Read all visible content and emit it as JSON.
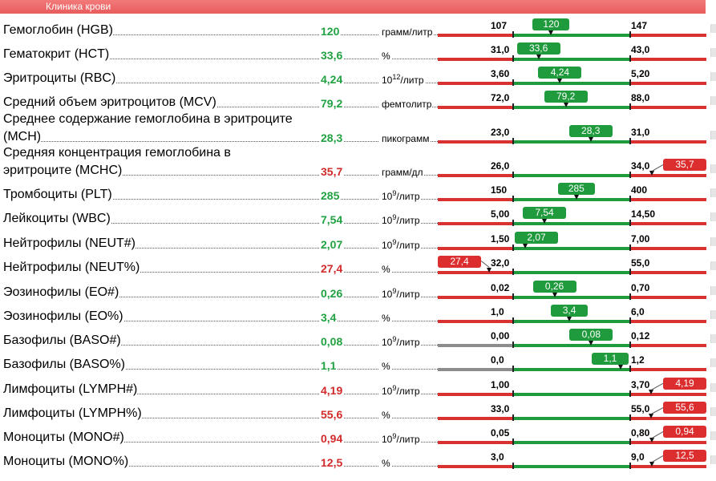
{
  "header": {
    "title": "Клиника крови"
  },
  "rows": [
    {
      "name": "Гемоглобин (HGB)",
      "value": "120",
      "unit": "грамм/литр",
      "low": "107",
      "high": "147",
      "v": 120,
      "lo": 107,
      "hi": 147,
      "status": "ok"
    },
    {
      "name": "Гематокрит (HCT)",
      "value": "33,6",
      "unit": "%",
      "low": "31,0",
      "high": "43,0",
      "v": 33.6,
      "lo": 31.0,
      "hi": 43.0,
      "status": "ok"
    },
    {
      "name": "Эритроциты (RBC)",
      "value": "4,24",
      "unit": "10",
      "unit_sup": "12",
      "unit_suffix": "/литр",
      "low": "3,60",
      "high": "5,20",
      "v": 4.24,
      "lo": 3.6,
      "hi": 5.2,
      "status": "ok"
    },
    {
      "name": "Средний объем эритроцитов (MCV)",
      "value": "79,2",
      "unit": "фемтолитр",
      "low": "72,0",
      "high": "88,0",
      "v": 79.2,
      "lo": 72.0,
      "hi": 88.0,
      "status": "ok"
    },
    {
      "name_line1": "Среднее содержание гемоглобина в эритроците",
      "name": "(MCH)",
      "value": "28,3",
      "unit": "пикограмм",
      "low": "23,0",
      "high": "31,0",
      "v": 28.3,
      "lo": 23.0,
      "hi": 31.0,
      "status": "ok"
    },
    {
      "name_line1": "Средняя концентрация гемоглобина в",
      "name": "эритроците (MCHC)",
      "value": "35,7",
      "unit": "грамм/дл",
      "low": "26,0",
      "high": "34,0",
      "v": 35.7,
      "lo": 26.0,
      "hi": 34.0,
      "status": "bad"
    },
    {
      "name": "Тромбоциты (PLT)",
      "value": "285",
      "unit": "10",
      "unit_sup": "9",
      "unit_suffix": "/литр",
      "low": "150",
      "high": "400",
      "v": 285,
      "lo": 150,
      "hi": 400,
      "status": "ok"
    },
    {
      "name": "Лейкоциты (WBC)",
      "value": "7,54",
      "unit": "10",
      "unit_sup": "9",
      "unit_suffix": "/литр",
      "low": "5,00",
      "high": "14,50",
      "v": 7.54,
      "lo": 5.0,
      "hi": 14.5,
      "status": "ok"
    },
    {
      "name": "Нейтрофилы (NEUT#)",
      "value": "2,07",
      "unit": "10",
      "unit_sup": "9",
      "unit_suffix": "/литр",
      "low": "1,50",
      "high": "7,00",
      "v": 2.07,
      "lo": 1.5,
      "hi": 7.0,
      "status": "ok"
    },
    {
      "name": "Нейтрофилы (NEUT%)",
      "value": "27,4",
      "unit": "%",
      "low": "32,0",
      "high": "55,0",
      "v": 27.4,
      "lo": 32.0,
      "hi": 55.0,
      "status": "bad"
    },
    {
      "name": "Эозинофилы (EO#)",
      "value": "0,26",
      "unit": "10",
      "unit_sup": "9",
      "unit_suffix": "/литр",
      "low": "0,02",
      "high": "0,70",
      "v": 0.26,
      "lo": 0.02,
      "hi": 0.7,
      "status": "ok"
    },
    {
      "name": "Эозинофилы (EO%)",
      "value": "3,4",
      "unit": "%",
      "low": "1,0",
      "high": "6,0",
      "v": 3.4,
      "lo": 1.0,
      "hi": 6.0,
      "status": "ok"
    },
    {
      "name": "Базофилы (BASO#)",
      "value": "0,08",
      "unit": "10",
      "unit_sup": "9",
      "unit_suffix": "/литр",
      "low": "0,00",
      "high": "0,12",
      "v": 0.08,
      "lo": 0.0,
      "hi": 0.12,
      "status": "ok",
      "bar_left_color": "#8c8c8c"
    },
    {
      "name": "Базофилы (BASO%)",
      "value": "1,1",
      "unit": "%",
      "low": "0,0",
      "high": "1,2",
      "v": 1.1,
      "lo": 0.0,
      "hi": 1.2,
      "status": "ok",
      "bar_left_color": "#8c8c8c"
    },
    {
      "name": "Лимфоциты (LYMPH#)",
      "value": "4,19",
      "unit": "10",
      "unit_sup": "9",
      "unit_suffix": "/литр",
      "low": "1,00",
      "high": "3,70",
      "v": 4.19,
      "lo": 1.0,
      "hi": 3.7,
      "status": "bad"
    },
    {
      "name": "Лимфоциты (LYMPH%)",
      "value": "55,6",
      "unit": "%",
      "low": "33,0",
      "high": "55,0",
      "v": 55.6,
      "lo": 33.0,
      "hi": 55.0,
      "status": "bad"
    },
    {
      "name": "Моноциты (MONO#)",
      "value": "0,94",
      "unit": "10",
      "unit_sup": "9",
      "unit_suffix": "/литр",
      "low": "0,05",
      "high": "0,80",
      "v": 0.94,
      "lo": 0.05,
      "hi": 0.8,
      "status": "bad"
    },
    {
      "name": "Моноциты (MONO%)",
      "value": "12,5",
      "unit": "%",
      "low": "3,0",
      "high": "9,0",
      "v": 12.5,
      "lo": 3.0,
      "hi": 9.0,
      "status": "bad"
    }
  ],
  "colors": {
    "normal": "#21a141",
    "abnormal": "#d22a2a",
    "range_bar": "#1f9a3c",
    "out_bar": "#d93030"
  }
}
